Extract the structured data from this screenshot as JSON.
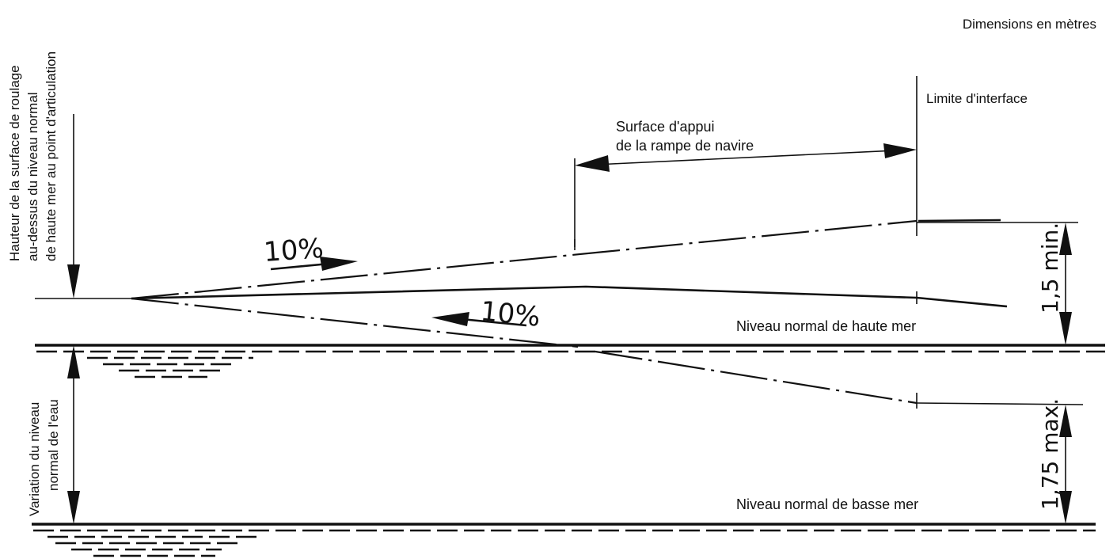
{
  "labels": {
    "dimensions_note": "Dimensions en mètres",
    "interface_limit": "Limite d'interface",
    "ramp_support_line1": "Surface d'appui",
    "ramp_support_line2": "de la rampe de navire",
    "slope_upper": "10%",
    "slope_lower": "10%",
    "high_water": "Niveau normal de haute mer",
    "low_water": "Niveau normal de basse mer",
    "dim_min": "1,5 min.",
    "dim_max": "1,75 max.",
    "height_axis_line1": "Hauteur de la surface de roulage",
    "height_axis_line2": "au-dessus du niveau normal",
    "height_axis_line3": "de haute mer au point d'articulation",
    "variation_line1": "Variation du niveau",
    "variation_line2": "normal de l'eau"
  },
  "colors": {
    "ink": "#111111",
    "paper": "#ffffff"
  }
}
